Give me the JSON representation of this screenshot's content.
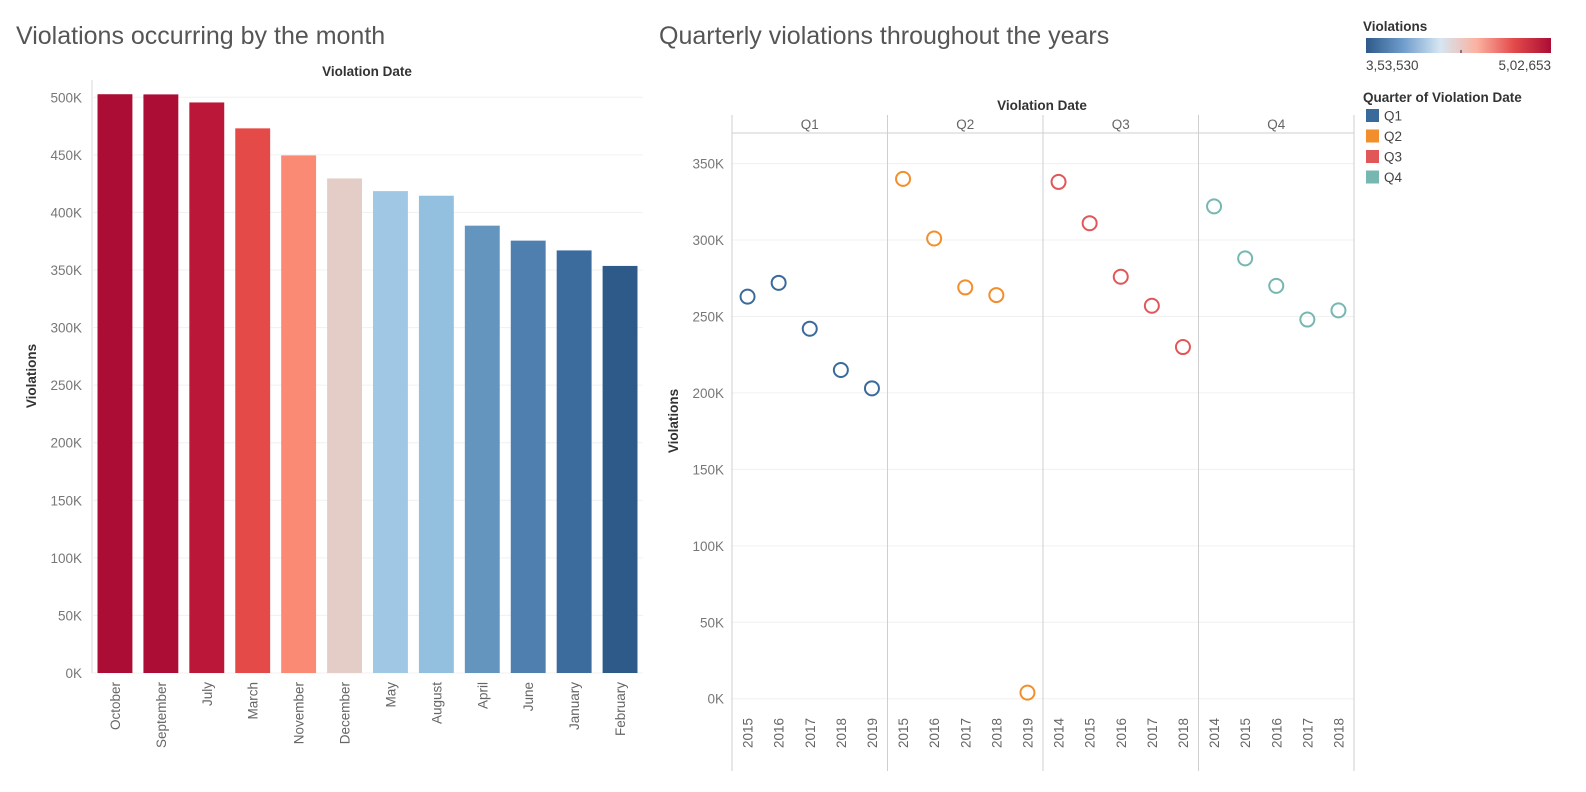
{
  "chart_data": [
    {
      "type": "bar",
      "title": "Violations occurring by the month",
      "column_header": "Violation Date",
      "ylabel": "Violations",
      "ylim": [
        0,
        515000
      ],
      "yticks": [
        0,
        50000,
        100000,
        150000,
        200000,
        250000,
        300000,
        350000,
        400000,
        450000,
        500000
      ],
      "ytick_labels": [
        "0K",
        "50K",
        "100K",
        "150K",
        "200K",
        "250K",
        "300K",
        "350K",
        "400K",
        "450K",
        "500K"
      ],
      "grid": true,
      "categories": [
        "October",
        "September",
        "July",
        "March",
        "November",
        "December",
        "May",
        "August",
        "April",
        "June",
        "January",
        "February"
      ],
      "values": [
        502653,
        502500,
        495500,
        473000,
        449500,
        429500,
        418500,
        414500,
        388500,
        375500,
        367000,
        353530
      ],
      "colors": [
        "#ab0d35",
        "#ab0d35",
        "#bb1738",
        "#e44a47",
        "#fa8a74",
        "#e5cdc7",
        "#a0c8e4",
        "#94c0e0",
        "#6495bf",
        "#4e7fae",
        "#3c6b9e",
        "#2e5a8a"
      ]
    },
    {
      "type": "scatter",
      "title": "Quarterly violations throughout the years",
      "column_header": "Violation Date",
      "ylabel": "Violations",
      "ylim": [
        -10000,
        370000
      ],
      "yticks": [
        0,
        50000,
        100000,
        150000,
        200000,
        250000,
        300000,
        350000
      ],
      "ytick_labels": [
        "0K",
        "50K",
        "100K",
        "150K",
        "200K",
        "250K",
        "300K",
        "350K"
      ],
      "grid": true,
      "marker": "hollow-circle",
      "series": [
        {
          "name": "Q1",
          "color": "#3a6a9c",
          "years": [
            "2015",
            "2016",
            "2017",
            "2018",
            "2019"
          ],
          "values": [
            263000,
            272000,
            242000,
            215000,
            203000
          ]
        },
        {
          "name": "Q2",
          "color": "#f28e2b",
          "years": [
            "2015",
            "2016",
            "2017",
            "2018",
            "2019"
          ],
          "values": [
            340000,
            301000,
            269000,
            264000,
            4000
          ]
        },
        {
          "name": "Q3",
          "color": "#e15759",
          "years": [
            "2014",
            "2015",
            "2016",
            "2017",
            "2018"
          ],
          "values": [
            338000,
            311000,
            276000,
            257000,
            230000
          ]
        },
        {
          "name": "Q4",
          "color": "#76b7b2",
          "years": [
            "2014",
            "2015",
            "2016",
            "2017",
            "2018"
          ],
          "values": [
            322000,
            288000,
            270000,
            248000,
            254000
          ]
        }
      ]
    }
  ],
  "legend_color": {
    "title": "Violations",
    "min_label": "3,53,530",
    "max_label": "5,02,653",
    "gradient": [
      "#2e5a8a",
      "#6e9ccb",
      "#d6e6f2",
      "#fbb1a0",
      "#e34a4a",
      "#ab0d35"
    ]
  },
  "legend_quarter": {
    "title": "Quarter of Violation Date",
    "items": [
      {
        "label": "Q1",
        "color": "#3a6a9c"
      },
      {
        "label": "Q2",
        "color": "#f28e2b"
      },
      {
        "label": "Q3",
        "color": "#e15759"
      },
      {
        "label": "Q4",
        "color": "#76b7b2"
      }
    ]
  }
}
